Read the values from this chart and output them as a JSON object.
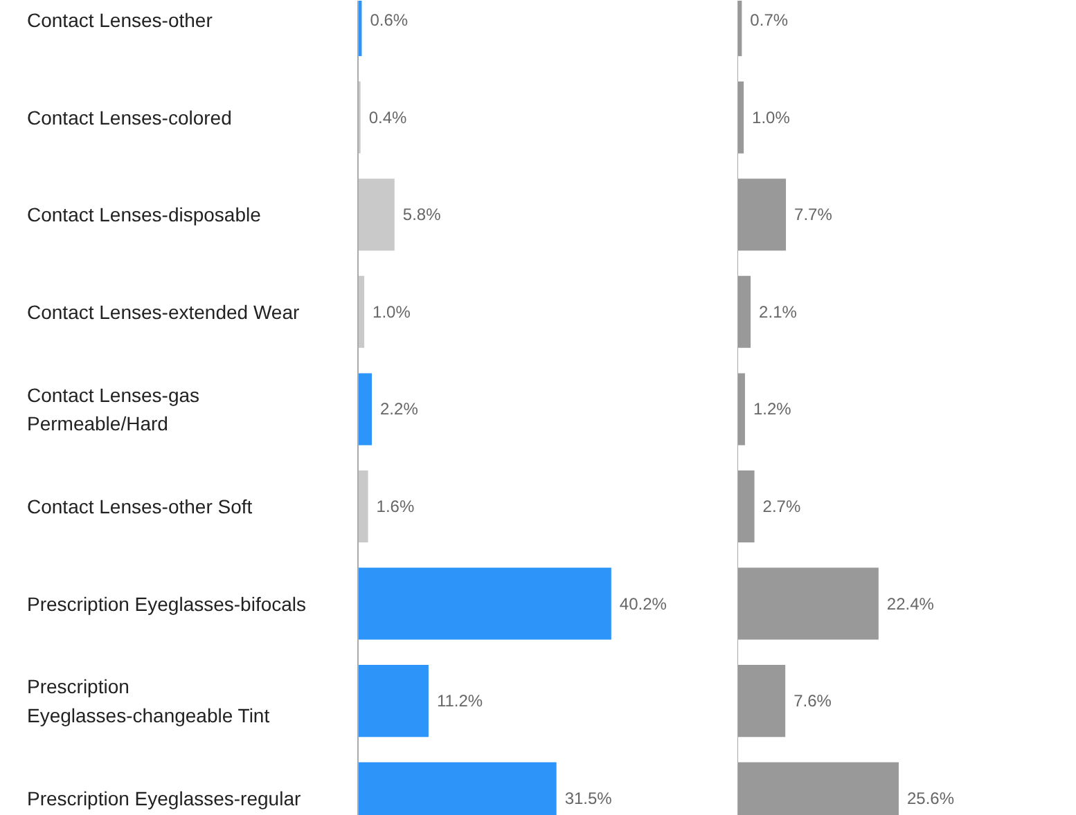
{
  "chart_data": [
    {
      "type": "bar",
      "orientation": "horizontal",
      "tick_labels": "y",
      "categories": [
        "Contact Lenses-other",
        "Contact Lenses-colored",
        "Contact Lenses-disposable",
        "Contact Lenses-extended Wear",
        "Contact Lenses-gas Permeable/Hard",
        "Contact Lenses-other Soft",
        "Prescription Eyeglasses-bifocals",
        "Prescription Eyeglasses-changeable Tint",
        "Prescription Eyeglasses-regular"
      ],
      "values": [
        0.6,
        0.4,
        5.8,
        1.0,
        2.2,
        1.6,
        40.2,
        11.2,
        31.5
      ],
      "colors": [
        "#2d94f9",
        "#c9c9c9",
        "#c9c9c9",
        "#c9c9c9",
        "#2d94f9",
        "#c9c9c9",
        "#2d94f9",
        "#2d94f9",
        "#2d94f9"
      ],
      "value_labels": [
        "0.6%",
        "0.4%",
        "5.8%",
        "1.0%",
        "2.2%",
        "1.6%",
        "40.2%",
        "11.2%",
        "31.5%"
      ]
    },
    {
      "type": "bar",
      "orientation": "horizontal",
      "tick_labels": false,
      "categories": [
        "Contact Lenses-other",
        "Contact Lenses-colored",
        "Contact Lenses-disposable",
        "Contact Lenses-extended Wear",
        "Contact Lenses-gas Permeable/Hard",
        "Contact Lenses-other Soft",
        "Prescription Eyeglasses-bifocals",
        "Prescription Eyeglasses-changeable Tint",
        "Prescription Eyeglasses-regular"
      ],
      "values": [
        0.7,
        1.0,
        7.7,
        2.1,
        1.2,
        2.7,
        22.4,
        7.6,
        25.6
      ],
      "color": "#999999",
      "value_labels": [
        "0.7%",
        "1.0%",
        "7.7%",
        "2.1%",
        "1.2%",
        "2.7%",
        "22.4%",
        "7.6%",
        "25.6%"
      ]
    }
  ]
}
